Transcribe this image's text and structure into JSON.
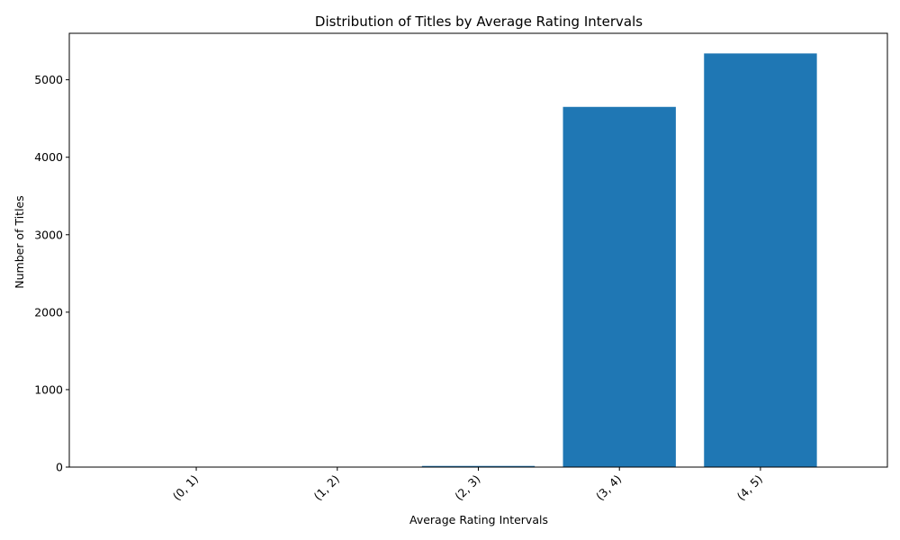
{
  "chart_data": {
    "type": "bar",
    "title": "Distribution of Titles by Average Rating Intervals",
    "xlabel": "Average Rating Intervals",
    "ylabel": "Number of Titles",
    "categories": [
      "(0, 1)",
      "(1, 2)",
      "(2, 3)",
      "(3, 4)",
      "(4, 5)"
    ],
    "values": [
      0,
      1,
      15,
      4650,
      5340
    ],
    "ylim": [
      0,
      5600
    ],
    "yticks": [
      0,
      1000,
      2000,
      3000,
      4000,
      5000
    ],
    "ytick_labels": [
      "0",
      "1000",
      "2000",
      "3000",
      "4000",
      "5000"
    ],
    "grid": false,
    "legend": "none",
    "bar_color": "#1f77b4"
  }
}
